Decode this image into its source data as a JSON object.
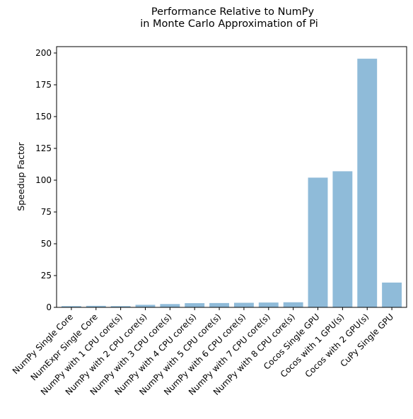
{
  "chart_data": {
    "type": "bar",
    "title_lines": [
      "Performance Relative to NumPy",
      "in Monte Carlo Approximation of Pi"
    ],
    "xlabel": "",
    "ylabel": "Speedup Factor",
    "categories": [
      "NumPy Single Core",
      "NumExpr Single Core",
      "NumPy with 1 CPU core(s)",
      "NumPy with 2 CPU core(s)",
      "NumPy with 3 CPU core(s)",
      "NumPy with 4 CPU core(s)",
      "NumPy with 5 CPU core(s)",
      "NumPy with 6 CPU core(s)",
      "NumPy with 7 CPU core(s)",
      "NumPy with 8 CPU core(s)",
      "Cocos Single GPU",
      "Cocos with 1 GPU(s)",
      "Cocos with 2 GPU(s)",
      "CuPy Single GPU"
    ],
    "values": [
      1.0,
      1.2,
      1.0,
      2.0,
      2.6,
      3.3,
      3.4,
      3.6,
      3.8,
      4.0,
      102,
      107,
      195.5,
      19.5
    ],
    "ylim": [
      0,
      205
    ],
    "yticks": [
      0,
      25,
      50,
      75,
      100,
      125,
      150,
      175,
      200
    ],
    "bar_color": "#1f77b4",
    "bar_alpha": 0.5,
    "grid": false,
    "legend": "none"
  }
}
